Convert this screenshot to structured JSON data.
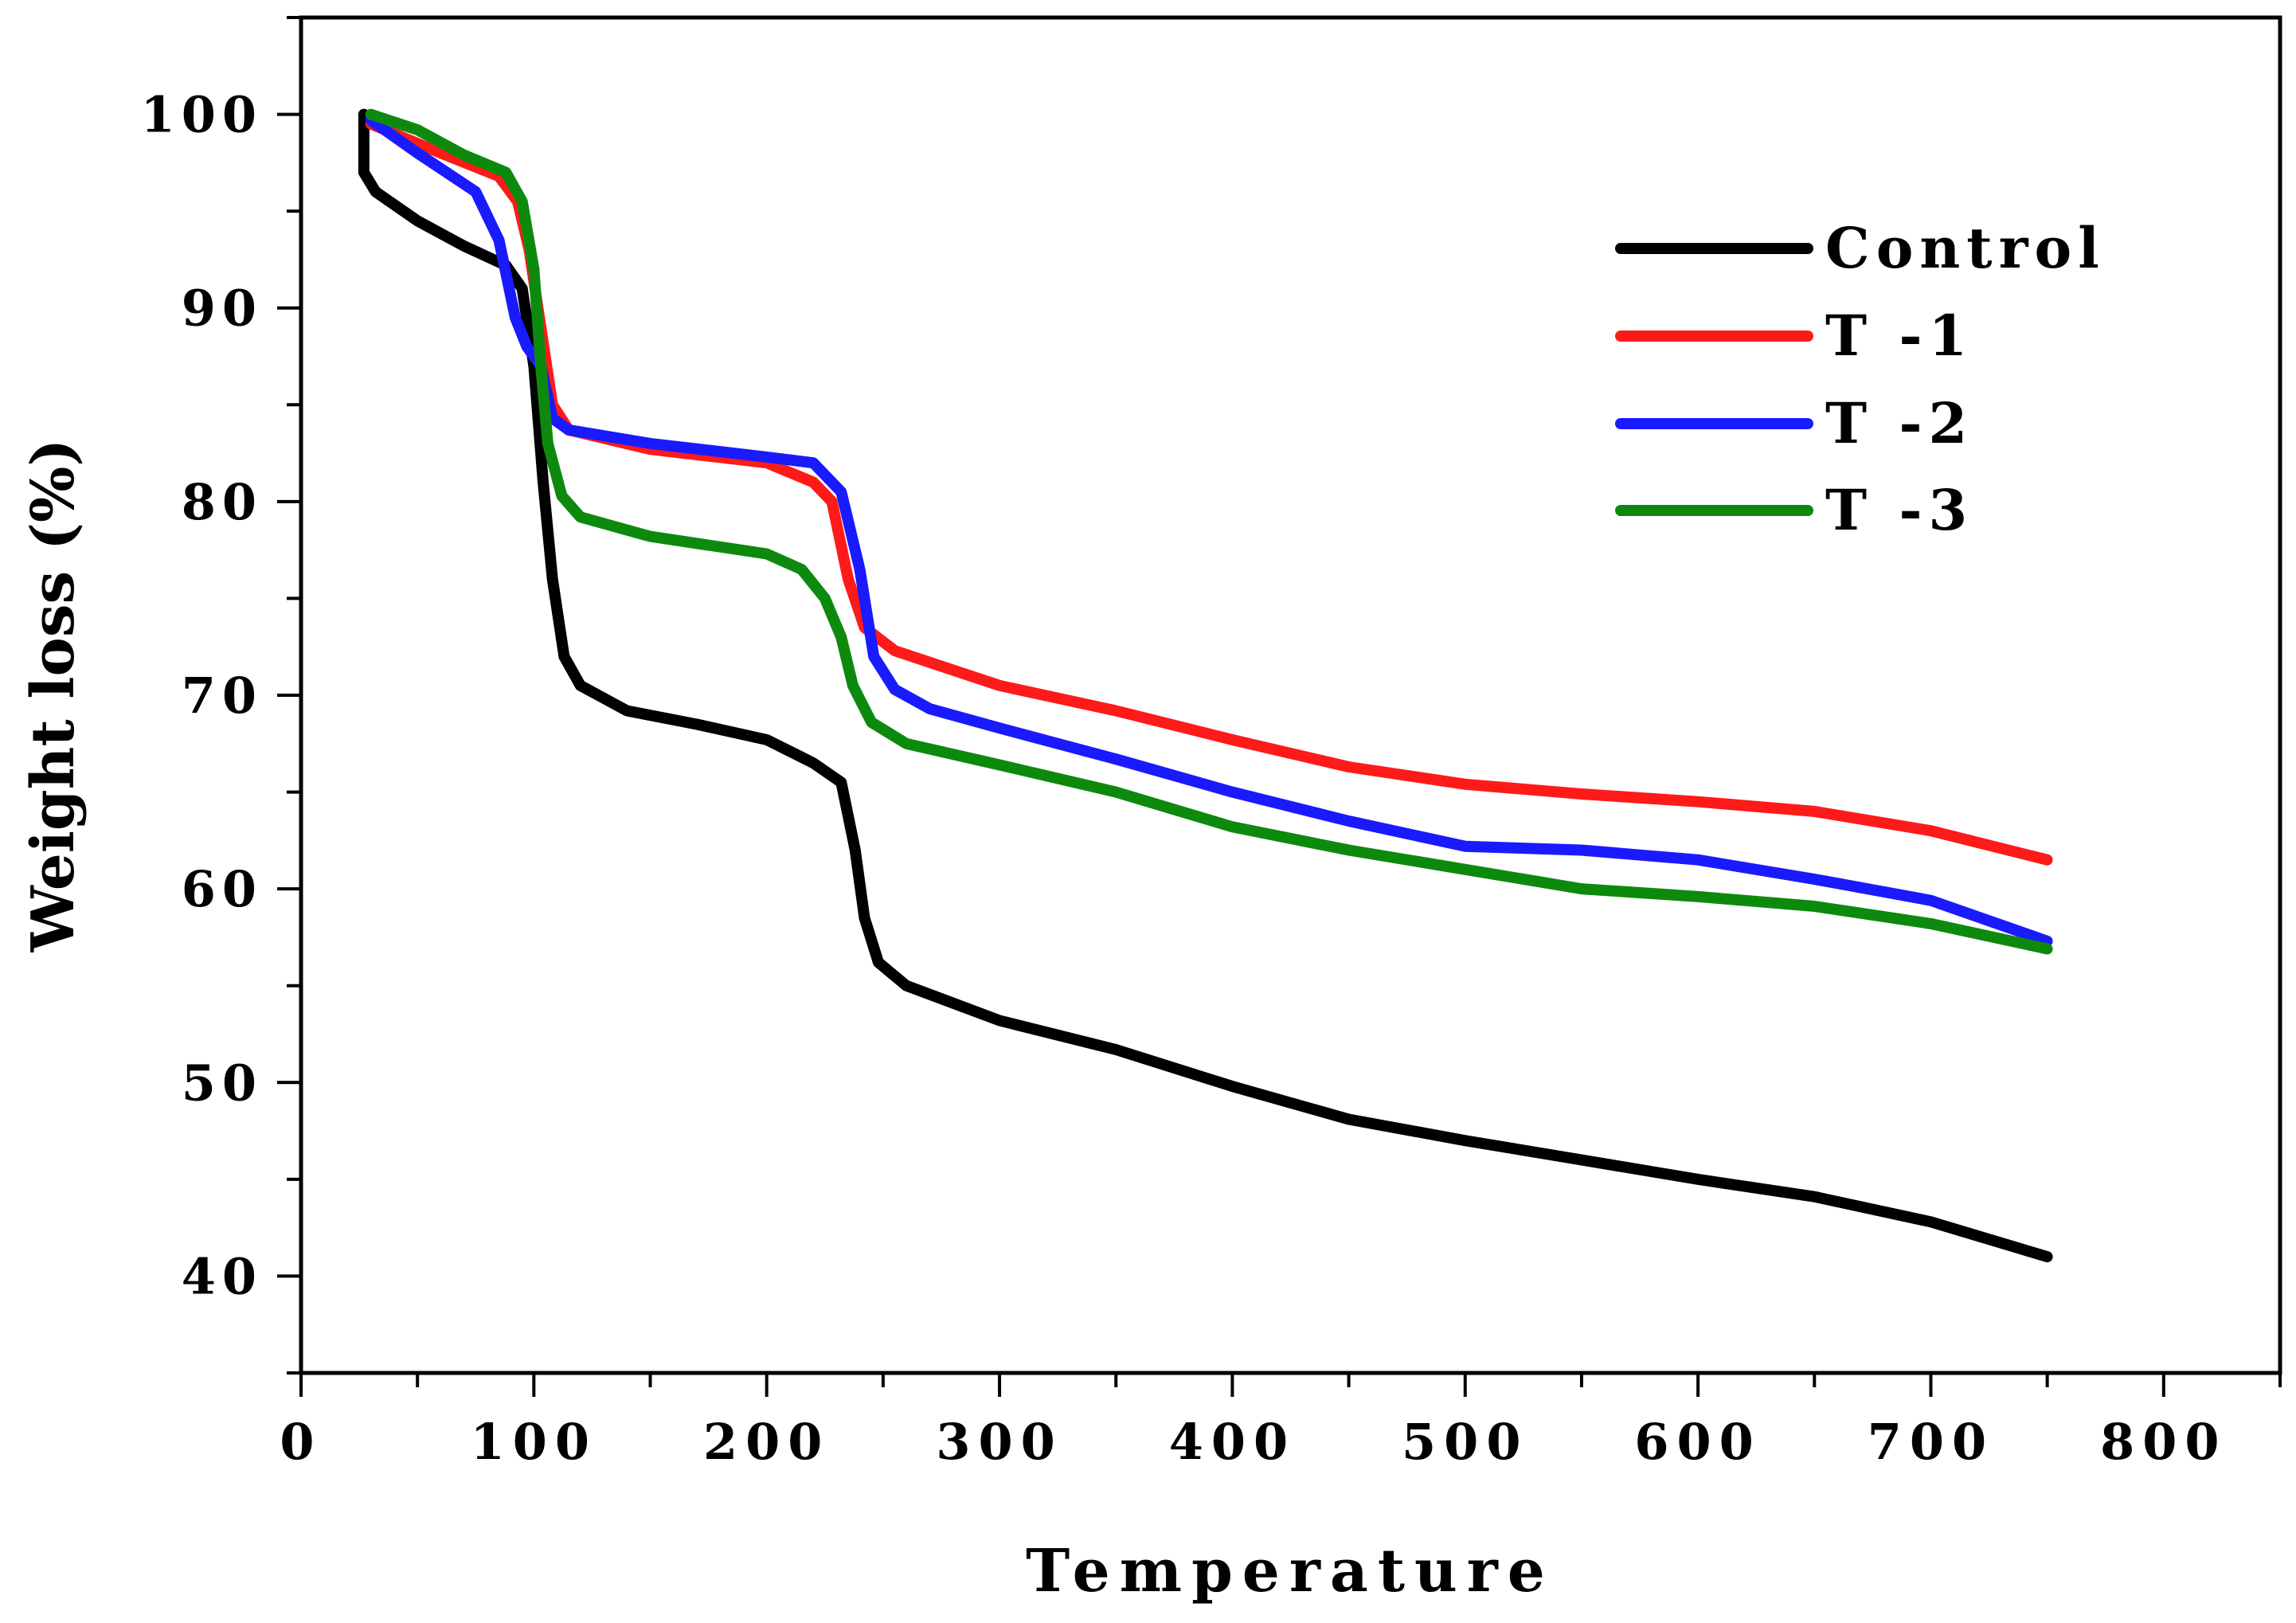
{
  "chart_data": {
    "type": "line",
    "title": "",
    "xlabel": "Temperature",
    "ylabel": "Weight loss (%)",
    "xlim": [
      0,
      850
    ],
    "ylim": [
      35,
      105
    ],
    "xticks": [
      0,
      100,
      200,
      300,
      400,
      500,
      600,
      700,
      800
    ],
    "yticks": [
      40,
      50,
      60,
      70,
      80,
      90,
      100
    ],
    "x_minor_step": 50,
    "y_minor_step": 5,
    "grid": false,
    "legend_position": "top-right",
    "series": [
      {
        "name": "Control",
        "color": "#000000",
        "points": [
          [
            27,
            100
          ],
          [
            27,
            97
          ],
          [
            32,
            96
          ],
          [
            50,
            94.5
          ],
          [
            70,
            93.2
          ],
          [
            88,
            92.2
          ],
          [
            95,
            91
          ],
          [
            100,
            87
          ],
          [
            104,
            81
          ],
          [
            108,
            76
          ],
          [
            113,
            72
          ],
          [
            120,
            70.5
          ],
          [
            140,
            69.2
          ],
          [
            170,
            68.5
          ],
          [
            200,
            67.7
          ],
          [
            220,
            66.5
          ],
          [
            232,
            65.5
          ],
          [
            238,
            62
          ],
          [
            242,
            58.5
          ],
          [
            248,
            56.2
          ],
          [
            260,
            55
          ],
          [
            300,
            53.2
          ],
          [
            350,
            51.7
          ],
          [
            400,
            49.8
          ],
          [
            450,
            48.1
          ],
          [
            500,
            47
          ],
          [
            550,
            46
          ],
          [
            600,
            45
          ],
          [
            650,
            44.1
          ],
          [
            700,
            42.8
          ],
          [
            750,
            41
          ]
        ]
      },
      {
        "name": "T -1",
        "color": "#ff1a1a",
        "points": [
          [
            30,
            99.5
          ],
          [
            60,
            98
          ],
          [
            85,
            96.8
          ],
          [
            93,
            95.5
          ],
          [
            98,
            93
          ],
          [
            103,
            89
          ],
          [
            108,
            85
          ],
          [
            115,
            83.7
          ],
          [
            150,
            82.7
          ],
          [
            200,
            82
          ],
          [
            220,
            81
          ],
          [
            228,
            80
          ],
          [
            235,
            76
          ],
          [
            242,
            73.5
          ],
          [
            255,
            72.3
          ],
          [
            300,
            70.5
          ],
          [
            350,
            69.2
          ],
          [
            400,
            67.7
          ],
          [
            450,
            66.3
          ],
          [
            500,
            65.4
          ],
          [
            550,
            64.9
          ],
          [
            600,
            64.5
          ],
          [
            650,
            64
          ],
          [
            700,
            63
          ],
          [
            750,
            61.5
          ]
        ]
      },
      {
        "name": "T -2",
        "color": "#1a1aff",
        "points": [
          [
            30,
            99.7
          ],
          [
            50,
            98
          ],
          [
            75,
            96
          ],
          [
            85,
            93.5
          ],
          [
            92,
            89.5
          ],
          [
            97,
            88
          ],
          [
            103,
            87
          ],
          [
            108,
            84.3
          ],
          [
            115,
            83.7
          ],
          [
            150,
            83
          ],
          [
            200,
            82.3
          ],
          [
            220,
            82
          ],
          [
            232,
            80.5
          ],
          [
            240,
            76.5
          ],
          [
            246,
            72
          ],
          [
            255,
            70.3
          ],
          [
            270,
            69.3
          ],
          [
            300,
            68.3
          ],
          [
            350,
            66.7
          ],
          [
            400,
            65
          ],
          [
            450,
            63.5
          ],
          [
            500,
            62.2
          ],
          [
            550,
            62
          ],
          [
            600,
            61.5
          ],
          [
            650,
            60.5
          ],
          [
            700,
            59.4
          ],
          [
            750,
            57.3
          ]
        ]
      },
      {
        "name": "T -3",
        "color": "#0d8a0d",
        "points": [
          [
            30,
            100
          ],
          [
            50,
            99.2
          ],
          [
            70,
            97.9
          ],
          [
            88,
            97
          ],
          [
            95,
            95.5
          ],
          [
            100,
            92
          ],
          [
            103,
            87
          ],
          [
            106,
            83
          ],
          [
            112,
            80.3
          ],
          [
            120,
            79.2
          ],
          [
            150,
            78.2
          ],
          [
            200,
            77.3
          ],
          [
            215,
            76.5
          ],
          [
            225,
            75
          ],
          [
            232,
            73
          ],
          [
            237,
            70.5
          ],
          [
            245,
            68.6
          ],
          [
            260,
            67.5
          ],
          [
            300,
            66.4
          ],
          [
            350,
            65
          ],
          [
            400,
            63.2
          ],
          [
            450,
            62
          ],
          [
            500,
            61
          ],
          [
            550,
            60
          ],
          [
            600,
            59.6
          ],
          [
            650,
            59.1
          ],
          [
            700,
            58.2
          ],
          [
            750,
            56.9
          ]
        ]
      }
    ]
  }
}
